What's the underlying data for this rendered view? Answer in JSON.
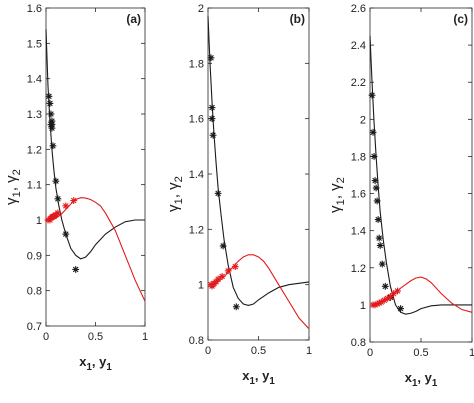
{
  "colors": {
    "black": "#1a1a1a",
    "red": "#e31a1c",
    "axis": "#262626"
  },
  "chart_data": [
    {
      "type": "line",
      "panel_label": "(a)",
      "xlabel": "x1, y1",
      "ylabel": "γ1, γ2",
      "xlim": [
        0,
        1
      ],
      "ylim": [
        0.7,
        1.6
      ],
      "xticks": [
        0,
        0.5,
        1
      ],
      "yticks": [
        0.7,
        0.8,
        0.9,
        1,
        1.1,
        1.2,
        1.3,
        1.4,
        1.5,
        1.6
      ],
      "xtick_labels": [
        "0",
        "0.5",
        "1"
      ],
      "ytick_labels": [
        "0.7",
        "0.8",
        "0.9",
        "1",
        "1.1",
        "1.2",
        "1.3",
        "1.4",
        "1.5",
        "1.6"
      ],
      "series": [
        {
          "color": "#1a1a1a",
          "kind": "line",
          "x": [
            0,
            0.02,
            0.04,
            0.06,
            0.08,
            0.1,
            0.13,
            0.16,
            0.2,
            0.25,
            0.3,
            0.35,
            0.4,
            0.45,
            0.5,
            0.6,
            0.7,
            0.8,
            0.9,
            1.0
          ],
          "y": [
            1.54,
            1.38,
            1.28,
            1.2,
            1.14,
            1.09,
            1.04,
            1.0,
            0.96,
            0.92,
            0.9,
            0.89,
            0.895,
            0.91,
            0.93,
            0.96,
            0.98,
            0.995,
            1.0,
            1.0
          ]
        },
        {
          "color": "#e31a1c",
          "kind": "line",
          "x": [
            0.02,
            0.05,
            0.1,
            0.15,
            0.2,
            0.25,
            0.3,
            0.35,
            0.4,
            0.45,
            0.5,
            0.55,
            0.6,
            0.7,
            0.8,
            0.9,
            1.0
          ],
          "y": [
            1.0,
            1.0,
            1.005,
            1.015,
            1.03,
            1.045,
            1.058,
            1.063,
            1.062,
            1.058,
            1.05,
            1.04,
            1.02,
            0.97,
            0.9,
            0.83,
            0.77
          ]
        },
        {
          "color": "#1a1a1a",
          "kind": "markers",
          "x": [
            0.03,
            0.04,
            0.05,
            0.05,
            0.06,
            0.06,
            0.06,
            0.07,
            0.1,
            0.12,
            0.2,
            0.3
          ],
          "y": [
            1.35,
            1.33,
            1.3,
            1.27,
            1.26,
            1.27,
            1.28,
            1.21,
            1.11,
            1.06,
            0.96,
            0.86
          ]
        },
        {
          "color": "#e31a1c",
          "kind": "markers",
          "x": [
            0.02,
            0.04,
            0.05,
            0.06,
            0.07,
            0.08,
            0.1,
            0.12,
            0.2,
            0.28
          ],
          "y": [
            1.0,
            1.0,
            1.005,
            1.008,
            1.01,
            1.01,
            1.015,
            1.02,
            1.04,
            1.055
          ]
        }
      ]
    },
    {
      "type": "line",
      "panel_label": "(b)",
      "xlabel": "x1, y1",
      "ylabel": "γ1, γ2",
      "xlim": [
        0,
        1
      ],
      "ylim": [
        0.8,
        2.0
      ],
      "xticks": [
        0,
        0.5,
        1
      ],
      "yticks": [
        0.8,
        1,
        1.2,
        1.4,
        1.6,
        1.8,
        2.0
      ],
      "xtick_labels": [
        "0",
        "0.5",
        "1"
      ],
      "ytick_labels": [
        "0.8",
        "1",
        "1.2",
        "1.4",
        "1.6",
        "1.8",
        "2"
      ],
      "series": [
        {
          "color": "#1a1a1a",
          "kind": "line",
          "x": [
            0,
            0.02,
            0.04,
            0.06,
            0.08,
            0.1,
            0.13,
            0.16,
            0.2,
            0.25,
            0.3,
            0.35,
            0.4,
            0.45,
            0.5,
            0.6,
            0.7,
            0.8,
            0.9,
            1.0
          ],
          "y": [
            1.97,
            1.8,
            1.66,
            1.54,
            1.44,
            1.35,
            1.25,
            1.16,
            1.07,
            0.99,
            0.95,
            0.93,
            0.925,
            0.93,
            0.945,
            0.97,
            0.99,
            1.0,
            1.005,
            1.01
          ]
        },
        {
          "color": "#e31a1c",
          "kind": "line",
          "x": [
            0.02,
            0.05,
            0.1,
            0.15,
            0.2,
            0.25,
            0.3,
            0.35,
            0.4,
            0.45,
            0.5,
            0.55,
            0.6,
            0.7,
            0.8,
            0.9,
            1.0
          ],
          "y": [
            1.0,
            1.0,
            1.01,
            1.025,
            1.045,
            1.065,
            1.085,
            1.1,
            1.108,
            1.108,
            1.1,
            1.085,
            1.06,
            1.0,
            0.94,
            0.88,
            0.84
          ]
        },
        {
          "color": "#1a1a1a",
          "kind": "markers",
          "x": [
            0.03,
            0.04,
            0.04,
            0.05,
            0.1,
            0.15,
            0.28
          ],
          "y": [
            1.82,
            1.64,
            1.6,
            1.54,
            1.33,
            1.14,
            0.92
          ]
        },
        {
          "color": "#e31a1c",
          "kind": "markers",
          "x": [
            0.03,
            0.04,
            0.05,
            0.06,
            0.08,
            0.1,
            0.14,
            0.2,
            0.27
          ],
          "y": [
            1.0,
            0.995,
            1.0,
            1.005,
            1.01,
            1.02,
            1.03,
            1.05,
            1.065
          ]
        }
      ]
    },
    {
      "type": "line",
      "panel_label": "(c)",
      "xlabel": "x1, y1",
      "ylabel": "γ1, γ2",
      "xlim": [
        0,
        1
      ],
      "ylim": [
        0.8,
        2.6
      ],
      "xticks": [
        0,
        0.5,
        1
      ],
      "yticks": [
        0.8,
        1,
        1.2,
        1.4,
        1.6,
        1.8,
        2.0,
        2.2,
        2.4,
        2.6
      ],
      "xtick_labels": [
        "0",
        "0.5",
        "1"
      ],
      "ytick_labels": [
        "0.8",
        "1",
        "1.2",
        "1.4",
        "1.6",
        "1.8",
        "2",
        "2.2",
        "2.4",
        "2.6"
      ],
      "series": [
        {
          "color": "#1a1a1a",
          "kind": "line",
          "x": [
            0,
            0.02,
            0.04,
            0.06,
            0.08,
            0.1,
            0.13,
            0.16,
            0.2,
            0.25,
            0.3,
            0.35,
            0.4,
            0.45,
            0.5,
            0.6,
            0.7,
            0.8,
            0.9,
            1.0
          ],
          "y": [
            2.45,
            2.2,
            1.98,
            1.8,
            1.64,
            1.5,
            1.35,
            1.23,
            1.1,
            1.0,
            0.96,
            0.95,
            0.955,
            0.965,
            0.98,
            0.995,
            1.0,
            1.0,
            1.0,
            1.0
          ]
        },
        {
          "color": "#e31a1c",
          "kind": "line",
          "x": [
            0.02,
            0.05,
            0.1,
            0.15,
            0.2,
            0.25,
            0.3,
            0.35,
            0.4,
            0.45,
            0.5,
            0.55,
            0.6,
            0.7,
            0.8,
            0.9,
            1.0
          ],
          "y": [
            1.0,
            1.0,
            1.01,
            1.025,
            1.045,
            1.065,
            1.09,
            1.11,
            1.13,
            1.145,
            1.15,
            1.14,
            1.12,
            1.06,
            1.01,
            0.975,
            0.96
          ]
        },
        {
          "color": "#1a1a1a",
          "kind": "markers",
          "x": [
            0.02,
            0.03,
            0.04,
            0.05,
            0.06,
            0.07,
            0.08,
            0.09,
            0.1,
            0.12,
            0.15,
            0.2,
            0.3
          ],
          "y": [
            2.13,
            1.93,
            1.8,
            1.67,
            1.63,
            1.56,
            1.46,
            1.36,
            1.32,
            1.22,
            1.1,
            1.04,
            0.98
          ]
        },
        {
          "color": "#e31a1c",
          "kind": "markers",
          "x": [
            0.03,
            0.05,
            0.07,
            0.09,
            0.11,
            0.14,
            0.17,
            0.2,
            0.23,
            0.27
          ],
          "y": [
            1.0,
            1.0,
            1.005,
            1.01,
            1.015,
            1.025,
            1.035,
            1.045,
            1.06,
            1.075
          ]
        }
      ]
    }
  ]
}
